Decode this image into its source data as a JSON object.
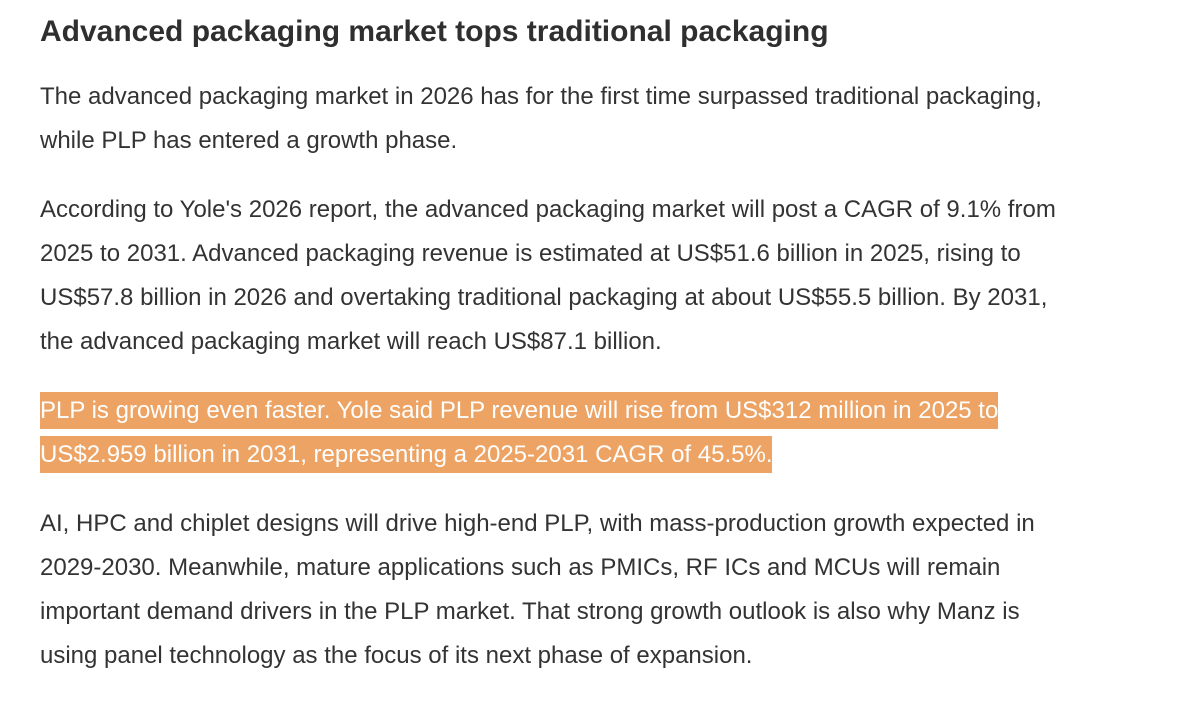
{
  "title": "Advanced packaging market tops traditional packaging",
  "paragraphs": [
    {
      "lines": [
        "The advanced packaging market in 2026 has for the first time surpassed traditional packaging,",
        "while PLP has entered a growth phase."
      ]
    },
    {
      "lines": [
        "According to Yole's 2026 report, the advanced packaging market will post a CAGR of 9.1% from",
        "2025 to 2031. Advanced packaging revenue is estimated at US$51.6 billion in 2025, rising to",
        "US$57.8 billion in 2026 and overtaking traditional packaging at about US$55.5 billion. By 2031,",
        "the advanced packaging market will reach US$87.1 billion."
      ]
    },
    {
      "lines": [
        "PLP is growing even faster. Yole said PLP revenue will rise from US$312 million in 2025 to",
        "US$2.959 billion in 2031, representing a 2025-2031 CAGR of 45.5%."
      ],
      "highlighted": true
    },
    {
      "lines": [
        "AI, HPC and chiplet designs will drive high-end PLP, with mass-production growth expected in",
        "2029-2030. Meanwhile, mature applications such as PMICs, RF ICs and MCUs will remain",
        "important demand drivers in the PLP market. That strong growth outlook is also why Manz is",
        "using panel technology as the focus of its next phase of expansion."
      ]
    }
  ]
}
